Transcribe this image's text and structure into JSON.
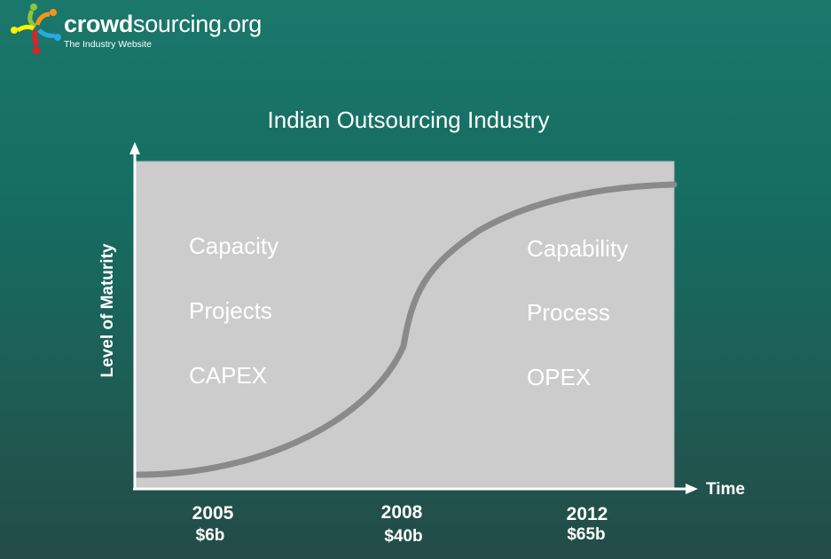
{
  "logo": {
    "name": "crowdsourcing.org",
    "name_bold": "crowd",
    "name_rest": "sourcing.org",
    "tagline": "The Industry Website"
  },
  "title": "Indian Outsourcing Industry",
  "axes": {
    "y_label": "Level of Maturity",
    "x_label": "Time"
  },
  "left_labels": [
    "Capacity",
    "Projects",
    "CAPEX"
  ],
  "right_labels": [
    "Capability",
    "Process",
    "OPEX"
  ],
  "milestones": [
    {
      "year": "2005",
      "value": "$6b"
    },
    {
      "year": "2008",
      "value": "$40b"
    },
    {
      "year": "2012",
      "value": "$65b"
    }
  ],
  "colors": {
    "plot_bg": "#cccccc",
    "curve": "#8a8a8a",
    "axes": "#ffffff"
  },
  "chart_data": {
    "type": "line",
    "shape": "s-curve",
    "x_ticks": [
      "2005",
      "2008",
      "2012"
    ],
    "x_tick_sublabels": [
      "$6b",
      "$40b",
      "$65b"
    ],
    "xlabel": "Time",
    "ylabel": "Level of Maturity",
    "title": "Indian Outsourcing Industry"
  }
}
